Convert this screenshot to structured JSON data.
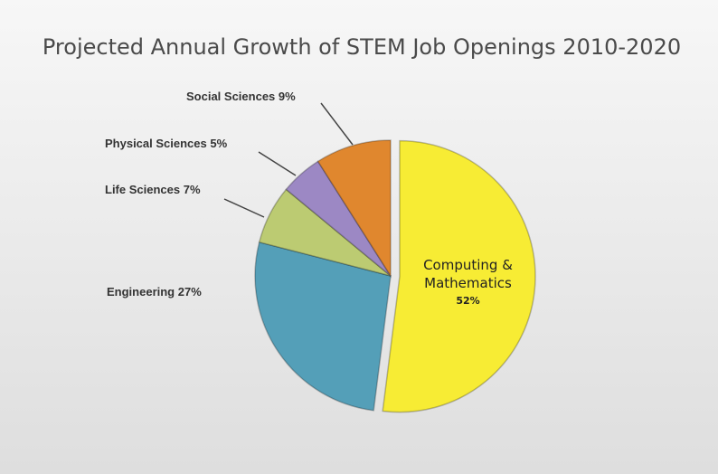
{
  "chart_data": {
    "type": "pie",
    "title": "Projected Annual Growth of STEM Job Openings 2010-2020",
    "categories": [
      "Computing & Mathematics",
      "Engineering",
      "Life Sciences",
      "Physical Sciences",
      "Social Sciences"
    ],
    "values": [
      52,
      27,
      7,
      5,
      9
    ],
    "value_labels": [
      "52%",
      "27%",
      "7%",
      "5%",
      "9%"
    ],
    "colors": [
      "#f7ec34",
      "#549fb8",
      "#bccb72",
      "#9c88c4",
      "#e0872e"
    ]
  }
}
